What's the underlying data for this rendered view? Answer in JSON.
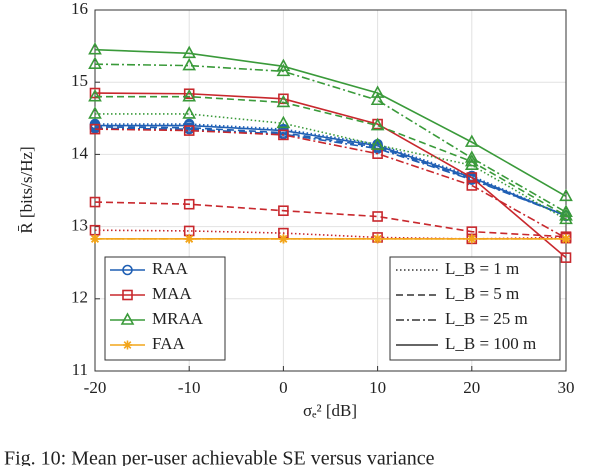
{
  "chart_data": {
    "type": "line",
    "x_label": "σₑ² [dB]",
    "y_label": "R̄ [bits/s/Hz]",
    "caption": "Fig. 10: Mean per-user achievable SE versus variance",
    "x": [
      -20,
      -10,
      0,
      10,
      20,
      30
    ],
    "xlim": [
      -20,
      30
    ],
    "xticks": [
      -20,
      -10,
      0,
      10,
      20,
      30
    ],
    "ylim": [
      11,
      16
    ],
    "yticks": [
      11,
      12,
      13,
      14,
      15,
      16
    ],
    "grid": true,
    "line_styles": [
      {
        "name": "L_B = 1 m",
        "dash": "dotted"
      },
      {
        "name": "L_B = 5 m",
        "dash": "dashed"
      },
      {
        "name": "L_B = 25 m",
        "dash": "dashdot"
      },
      {
        "name": "L_B = 100 m",
        "dash": "solid"
      }
    ],
    "series": [
      {
        "name": "RAA",
        "color": "#1f5fb4",
        "marker": "circle",
        "curves": [
          [
            14.42,
            14.42,
            14.35,
            14.14,
            13.7,
            13.15
          ],
          [
            14.38,
            14.37,
            14.3,
            14.1,
            13.66,
            13.15
          ],
          [
            14.36,
            14.35,
            14.28,
            14.08,
            13.65,
            13.15
          ],
          [
            14.4,
            14.4,
            14.33,
            14.12,
            13.68,
            13.15
          ]
        ]
      },
      {
        "name": "MAA",
        "color": "#c8282d",
        "marker": "square",
        "curves": [
          [
            12.95,
            12.94,
            12.91,
            12.85,
            12.83,
            12.85
          ],
          [
            13.34,
            13.31,
            13.22,
            13.14,
            12.93,
            12.86
          ],
          [
            14.35,
            14.33,
            14.27,
            14.01,
            13.57,
            12.84
          ],
          [
            14.85,
            14.84,
            14.77,
            14.42,
            13.68,
            12.57
          ]
        ]
      },
      {
        "name": "MRAA",
        "color": "#3a9a3a",
        "marker": "triangle",
        "curves": [
          [
            14.56,
            14.56,
            14.43,
            14.13,
            13.85,
            13.1
          ],
          [
            14.8,
            14.8,
            14.72,
            14.4,
            13.9,
            13.15
          ],
          [
            15.25,
            15.23,
            15.15,
            14.75,
            13.95,
            13.2
          ],
          [
            15.45,
            15.4,
            15.22,
            14.85,
            14.17,
            13.42
          ]
        ]
      },
      {
        "name": "FAA",
        "color": "#f2a51a",
        "marker": "asterisk",
        "curves": [
          [
            12.83,
            12.83,
            12.83,
            12.83,
            12.83,
            12.83
          ],
          [
            12.83,
            12.83,
            12.83,
            12.83,
            12.83,
            12.83
          ],
          [
            12.83,
            12.83,
            12.83,
            12.83,
            12.83,
            12.83
          ],
          [
            12.83,
            12.83,
            12.83,
            12.83,
            12.83,
            12.83
          ]
        ]
      }
    ]
  }
}
